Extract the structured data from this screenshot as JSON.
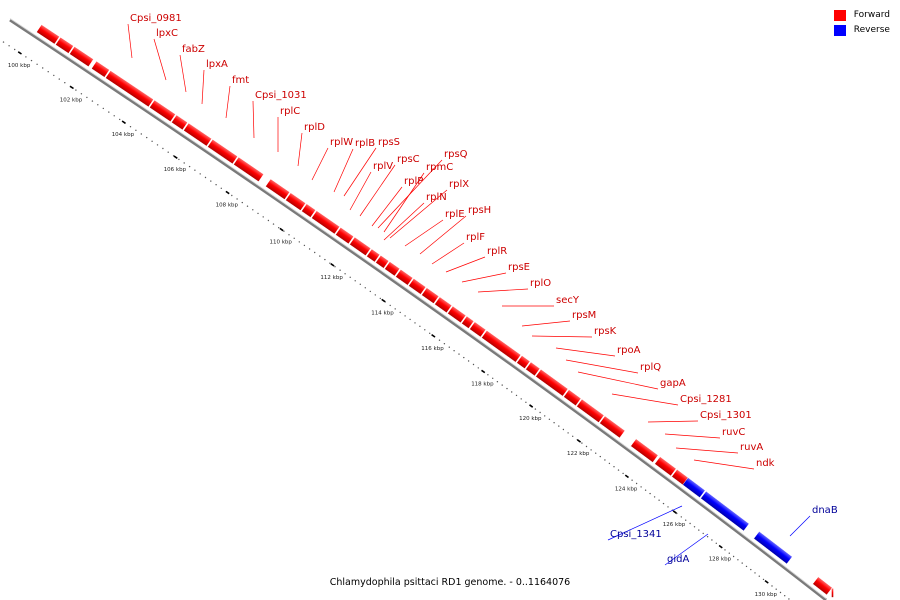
{
  "caption": "Chlamydophila psittaci RD1 genome. - 0..1164076",
  "legend": [
    {
      "label": "Forward",
      "color": "#ff0000"
    },
    {
      "label": "Reverse",
      "color": "#0000ff"
    }
  ],
  "strand_colors": {
    "forward": "#ff0000",
    "reverse": "#0000ff",
    "forward_label": "#cc0000",
    "reverse_label": "#000099"
  },
  "ticks": [
    "100 kbp",
    "102 kbp",
    "104 kbp",
    "106 kbp",
    "108 kbp",
    "110 kbp",
    "112 kbp",
    "114 kbp",
    "116 kbp",
    "118 kbp",
    "120 kbp",
    "122 kbp",
    "124 kbp",
    "126 kbp",
    "128 kbp",
    "130 kbp"
  ],
  "genes": [
    {
      "name": "Cpsi_0981",
      "strand": "forward"
    },
    {
      "name": "lpxC",
      "strand": "forward"
    },
    {
      "name": "fabZ",
      "strand": "forward"
    },
    {
      "name": "lpxA",
      "strand": "forward"
    },
    {
      "name": "fmt",
      "strand": "forward"
    },
    {
      "name": "Cpsi_1031",
      "strand": "forward"
    },
    {
      "name": "rplC",
      "strand": "forward"
    },
    {
      "name": "rplD",
      "strand": "forward"
    },
    {
      "name": "rplW",
      "strand": "forward"
    },
    {
      "name": "rplB",
      "strand": "forward"
    },
    {
      "name": "rpsS",
      "strand": "forward"
    },
    {
      "name": "rplV",
      "strand": "forward"
    },
    {
      "name": "rpsC",
      "strand": "forward"
    },
    {
      "name": "rpsQ",
      "strand": "forward"
    },
    {
      "name": "rpmC",
      "strand": "forward"
    },
    {
      "name": "rplP",
      "strand": "forward"
    },
    {
      "name": "rplX",
      "strand": "forward"
    },
    {
      "name": "rplN",
      "strand": "forward"
    },
    {
      "name": "rplE",
      "strand": "forward"
    },
    {
      "name": "rpsH",
      "strand": "forward"
    },
    {
      "name": "rplF",
      "strand": "forward"
    },
    {
      "name": "rplR",
      "strand": "forward"
    },
    {
      "name": "rpsE",
      "strand": "forward"
    },
    {
      "name": "rplO",
      "strand": "forward"
    },
    {
      "name": "secY",
      "strand": "forward"
    },
    {
      "name": "rpsM",
      "strand": "forward"
    },
    {
      "name": "rpsK",
      "strand": "forward"
    },
    {
      "name": "rpoA",
      "strand": "forward"
    },
    {
      "name": "rplQ",
      "strand": "forward"
    },
    {
      "name": "gapA",
      "strand": "forward"
    },
    {
      "name": "Cpsi_1281",
      "strand": "forward"
    },
    {
      "name": "Cpsi_1301",
      "strand": "forward"
    },
    {
      "name": "ruvC",
      "strand": "forward"
    },
    {
      "name": "ruvA",
      "strand": "forward"
    },
    {
      "name": "ndk",
      "strand": "forward"
    },
    {
      "name": "dnaB",
      "strand": "reverse"
    },
    {
      "name": "Cpsi_1341",
      "strand": "reverse"
    },
    {
      "name": "gidA",
      "strand": "reverse"
    }
  ]
}
